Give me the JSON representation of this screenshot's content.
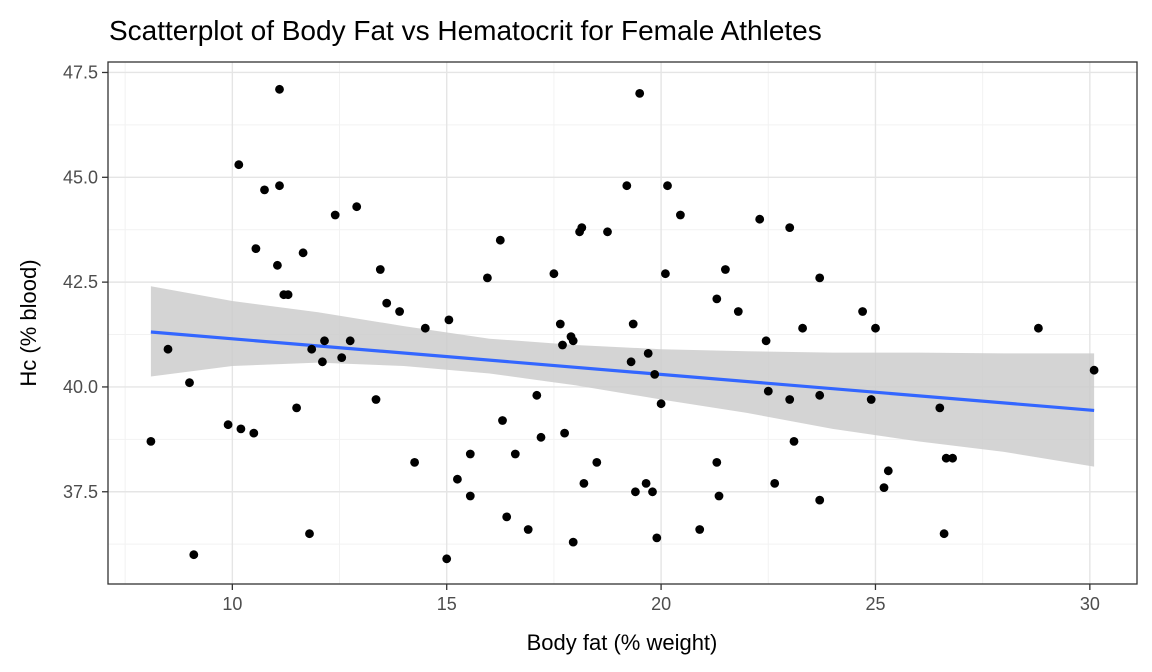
{
  "chart_data": {
    "type": "scatter",
    "title": "Scatterplot of Body Fat vs Hematocrit for Female Athletes",
    "xlabel": "Body fat (% weight)",
    "ylabel": "Hc (% blood)",
    "xlim": [
      7.1,
      31.1
    ],
    "ylim": [
      35.3,
      47.75
    ],
    "x_ticks": [
      10,
      15,
      20,
      25,
      30
    ],
    "x_tick_labels": [
      "10",
      "15",
      "20",
      "25",
      "30"
    ],
    "y_ticks": [
      37.5,
      40.0,
      42.5,
      45.0,
      47.5
    ],
    "y_tick_labels": [
      "37.5",
      "40.0",
      "42.5",
      "45.0",
      "47.5"
    ],
    "grid": true,
    "legend": "none",
    "colors": {
      "point": "#000000",
      "fit_line": "#3366ff",
      "ci_band": "#cccccc",
      "grid_major": "#e5e5e5",
      "grid_minor": "#f2f2f2",
      "panel_border": "#333333"
    },
    "points": [
      {
        "x": 8.1,
        "y": 38.7
      },
      {
        "x": 8.5,
        "y": 40.9
      },
      {
        "x": 9.0,
        "y": 40.1
      },
      {
        "x": 9.1,
        "y": 36.0
      },
      {
        "x": 9.9,
        "y": 39.1
      },
      {
        "x": 10.15,
        "y": 45.3
      },
      {
        "x": 10.2,
        "y": 39.0
      },
      {
        "x": 10.5,
        "y": 38.9
      },
      {
        "x": 10.55,
        "y": 43.3
      },
      {
        "x": 10.75,
        "y": 44.7
      },
      {
        "x": 11.05,
        "y": 42.9
      },
      {
        "x": 11.1,
        "y": 44.8
      },
      {
        "x": 11.1,
        "y": 47.1
      },
      {
        "x": 11.2,
        "y": 42.2
      },
      {
        "x": 11.3,
        "y": 42.2
      },
      {
        "x": 11.5,
        "y": 39.5
      },
      {
        "x": 11.65,
        "y": 43.2
      },
      {
        "x": 11.8,
        "y": 36.5
      },
      {
        "x": 11.85,
        "y": 40.9
      },
      {
        "x": 12.1,
        "y": 40.6
      },
      {
        "x": 12.15,
        "y": 41.1
      },
      {
        "x": 12.4,
        "y": 44.1
      },
      {
        "x": 12.55,
        "y": 40.7
      },
      {
        "x": 12.75,
        "y": 41.1
      },
      {
        "x": 12.9,
        "y": 44.3
      },
      {
        "x": 13.35,
        "y": 39.7
      },
      {
        "x": 13.45,
        "y": 42.8
      },
      {
        "x": 13.6,
        "y": 42.0
      },
      {
        "x": 13.9,
        "y": 41.8
      },
      {
        "x": 14.25,
        "y": 38.2
      },
      {
        "x": 14.5,
        "y": 41.4
      },
      {
        "x": 15.0,
        "y": 35.9
      },
      {
        "x": 15.05,
        "y": 41.6
      },
      {
        "x": 15.25,
        "y": 37.8
      },
      {
        "x": 15.55,
        "y": 37.4
      },
      {
        "x": 15.55,
        "y": 38.4
      },
      {
        "x": 15.95,
        "y": 42.6
      },
      {
        "x": 16.25,
        "y": 43.5
      },
      {
        "x": 16.3,
        "y": 39.2
      },
      {
        "x": 16.4,
        "y": 36.9
      },
      {
        "x": 16.6,
        "y": 38.4
      },
      {
        "x": 16.9,
        "y": 36.6
      },
      {
        "x": 17.1,
        "y": 39.8
      },
      {
        "x": 17.2,
        "y": 38.8
      },
      {
        "x": 17.5,
        "y": 42.7
      },
      {
        "x": 17.65,
        "y": 41.5
      },
      {
        "x": 17.7,
        "y": 41.0
      },
      {
        "x": 17.75,
        "y": 38.9
      },
      {
        "x": 17.9,
        "y": 41.2
      },
      {
        "x": 17.95,
        "y": 36.3
      },
      {
        "x": 17.95,
        "y": 41.1
      },
      {
        "x": 18.1,
        "y": 43.7
      },
      {
        "x": 18.15,
        "y": 43.8
      },
      {
        "x": 18.2,
        "y": 37.7
      },
      {
        "x": 18.5,
        "y": 38.2
      },
      {
        "x": 18.75,
        "y": 43.7
      },
      {
        "x": 19.2,
        "y": 44.8
      },
      {
        "x": 19.3,
        "y": 40.6
      },
      {
        "x": 19.35,
        "y": 41.5
      },
      {
        "x": 19.4,
        "y": 37.5
      },
      {
        "x": 19.5,
        "y": 47.0
      },
      {
        "x": 19.65,
        "y": 37.7
      },
      {
        "x": 19.7,
        "y": 40.8
      },
      {
        "x": 19.8,
        "y": 37.5
      },
      {
        "x": 19.85,
        "y": 40.3
      },
      {
        "x": 19.9,
        "y": 36.4
      },
      {
        "x": 20.0,
        "y": 39.6
      },
      {
        "x": 20.1,
        "y": 42.7
      },
      {
        "x": 20.15,
        "y": 44.8
      },
      {
        "x": 20.45,
        "y": 44.1
      },
      {
        "x": 20.9,
        "y": 36.6
      },
      {
        "x": 21.3,
        "y": 38.2
      },
      {
        "x": 21.3,
        "y": 42.1
      },
      {
        "x": 21.35,
        "y": 37.4
      },
      {
        "x": 21.5,
        "y": 42.8
      },
      {
        "x": 21.8,
        "y": 41.8
      },
      {
        "x": 22.3,
        "y": 44.0
      },
      {
        "x": 22.45,
        "y": 41.1
      },
      {
        "x": 22.5,
        "y": 39.9
      },
      {
        "x": 22.65,
        "y": 37.7
      },
      {
        "x": 23.0,
        "y": 43.8
      },
      {
        "x": 23.0,
        "y": 39.7
      },
      {
        "x": 23.1,
        "y": 38.7
      },
      {
        "x": 23.3,
        "y": 41.4
      },
      {
        "x": 23.7,
        "y": 37.3
      },
      {
        "x": 23.7,
        "y": 42.6
      },
      {
        "x": 23.7,
        "y": 39.8
      },
      {
        "x": 24.7,
        "y": 41.8
      },
      {
        "x": 24.9,
        "y": 39.7
      },
      {
        "x": 25.0,
        "y": 41.4
      },
      {
        "x": 25.2,
        "y": 37.6
      },
      {
        "x": 25.3,
        "y": 38.0
      },
      {
        "x": 26.5,
        "y": 39.5
      },
      {
        "x": 26.6,
        "y": 36.5
      },
      {
        "x": 26.65,
        "y": 38.3
      },
      {
        "x": 26.8,
        "y": 38.3
      },
      {
        "x": 28.8,
        "y": 41.4
      },
      {
        "x": 30.1,
        "y": 40.4
      }
    ],
    "fit_line": {
      "x": [
        8.1,
        30.1
      ],
      "y": [
        41.31,
        39.44
      ]
    },
    "confidence_band": {
      "x": [
        8.1,
        10.0,
        12.0,
        14.0,
        16.0,
        18.0,
        20.0,
        22.0,
        24.0,
        26.0,
        28.0,
        30.1
      ],
      "lower": [
        40.25,
        40.5,
        40.58,
        40.5,
        40.32,
        40.04,
        39.7,
        39.38,
        39.0,
        38.7,
        38.45,
        38.1
      ],
      "upper": [
        42.4,
        42.05,
        41.78,
        41.45,
        41.15,
        41.0,
        40.9,
        40.85,
        40.82,
        40.82,
        40.8,
        40.8
      ]
    }
  }
}
